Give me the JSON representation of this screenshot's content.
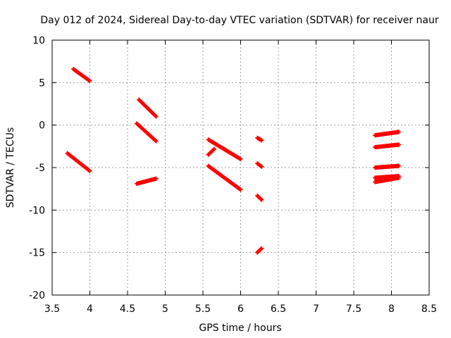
{
  "chart_data": {
    "type": "scatter",
    "title": "Day 012 of 2024, Sidereal Day-to-day VTEC variation (SDTVAR) for receiver naur",
    "xlabel": "GPS time / hours",
    "ylabel": "SDTVAR / TECUs",
    "xlim": [
      3.5,
      8.5
    ],
    "ylim": [
      -20,
      10
    ],
    "xticks": [
      "3.5",
      "4",
      "4.5",
      "5",
      "5.5",
      "6",
      "6.5",
      "7",
      "7.5",
      "8",
      "8.5"
    ],
    "yticks": [
      "10",
      "5",
      "0",
      "-5",
      "-10",
      "-15",
      "-20"
    ],
    "grid": true,
    "marker_color": "#ff0000",
    "segments": [
      {
        "x_start": 3.78,
        "x_end": 4.0,
        "y_start": 6.6,
        "y_end": 5.2
      },
      {
        "x_start": 3.7,
        "x_end": 4.0,
        "y_start": -3.3,
        "y_end": -5.4
      },
      {
        "x_start": 4.65,
        "x_end": 4.88,
        "y_start": 3.0,
        "y_end": 1.0
      },
      {
        "x_start": 4.62,
        "x_end": 4.88,
        "y_start": 0.2,
        "y_end": -1.9
      },
      {
        "x_start": 4.62,
        "x_end": 4.88,
        "y_start": -6.9,
        "y_end": -6.3
      },
      {
        "x_start": 5.57,
        "x_end": 6.0,
        "y_start": -1.7,
        "y_end": -4.0
      },
      {
        "x_start": 5.57,
        "x_end": 5.65,
        "y_start": -3.5,
        "y_end": -2.8
      },
      {
        "x_start": 5.57,
        "x_end": 6.0,
        "y_start": -4.8,
        "y_end": -7.6
      },
      {
        "x_start": 6.22,
        "x_end": 6.28,
        "y_start": -1.5,
        "y_end": -1.8
      },
      {
        "x_start": 6.22,
        "x_end": 6.28,
        "y_start": -4.5,
        "y_end": -4.9
      },
      {
        "x_start": 6.22,
        "x_end": 6.28,
        "y_start": -8.3,
        "y_end": -8.8
      },
      {
        "x_start": 6.22,
        "x_end": 6.28,
        "y_start": -15.0,
        "y_end": -14.5
      },
      {
        "x_start": 7.78,
        "x_end": 8.1,
        "y_start": -1.2,
        "y_end": -0.8
      },
      {
        "x_start": 7.78,
        "x_end": 8.1,
        "y_start": -2.6,
        "y_end": -2.3
      },
      {
        "x_start": 7.78,
        "x_end": 8.1,
        "y_start": -5.0,
        "y_end": -4.8
      },
      {
        "x_start": 7.78,
        "x_end": 8.1,
        "y_start": -6.2,
        "y_end": -6.0
      },
      {
        "x_start": 7.78,
        "x_end": 8.1,
        "y_start": -6.7,
        "y_end": -6.2
      }
    ]
  }
}
